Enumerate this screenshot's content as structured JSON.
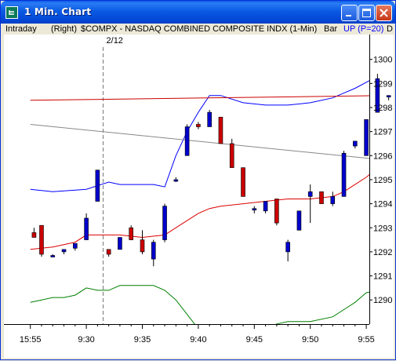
{
  "window": {
    "title": "1 Min. Chart",
    "icon": "chart-app-icon",
    "buttons": {
      "minimize": "minimize-icon",
      "maximize": "maximize-icon",
      "close": "close-icon"
    }
  },
  "header": {
    "period": "Intraday",
    "axis_side": "(Right)",
    "symbol": "$COMPX - NASDAQ COMBINED COMPOSITE INDX (1-Min)",
    "date": "2/12",
    "chart_style": "Bar",
    "indicator": "UP (P=20)",
    "truncated": "D"
  },
  "colors": {
    "up_bar": "#0000CC",
    "down_bar": "#CC0000",
    "upper_band": "#0000FF",
    "lower_band": "#DD0000",
    "red_avg": "#CC0000",
    "gray_avg": "#888888",
    "green_line": "#008000",
    "indicator_text": "#0000FF"
  },
  "chart_data": {
    "type": "candlestick",
    "x_tick_labels": [
      "15:55",
      "9:30",
      "9:35",
      "9:40",
      "9:45",
      "9:50",
      "9:55"
    ],
    "y_tick_labels": [
      "1290",
      "1291",
      "1292",
      "1293",
      "1294",
      "1295",
      "1296",
      "1297",
      "1298",
      "1299",
      "1300"
    ],
    "ylim": [
      1289.1,
      1301.0
    ],
    "candles": [
      {
        "x": -4.67,
        "o": 1292.8,
        "h": 1293.0,
        "l": 1292.6,
        "c": 1292.6
      },
      {
        "x": -4.0,
        "o": 1293.1,
        "h": 1293.1,
        "l": 1291.8,
        "c": 1291.9
      },
      {
        "x": -3.0,
        "o": 1291.85,
        "h": 1291.9,
        "l": 1291.8,
        "c": 1291.85
      },
      {
        "x": -2.0,
        "o": 1292.0,
        "h": 1292.1,
        "l": 1291.9,
        "c": 1292.1
      },
      {
        "x": -1.0,
        "o": 1292.15,
        "h": 1292.35,
        "l": 1292.05,
        "c": 1292.35
      },
      {
        "x": 0.0,
        "o": 1292.5,
        "h": 1293.6,
        "l": 1292.5,
        "c": 1293.4
      },
      {
        "x": 1.0,
        "o": 1294.1,
        "h": 1295.4,
        "l": 1294.1,
        "c": 1295.4
      },
      {
        "x": 2.0,
        "o": 1292.1,
        "h": 1292.1,
        "l": 1291.8,
        "c": 1291.9
      },
      {
        "x": 3.0,
        "o": 1292.1,
        "h": 1292.6,
        "l": 1292.1,
        "c": 1292.6
      },
      {
        "x": 4.0,
        "o": 1293.0,
        "h": 1293.1,
        "l": 1292.5,
        "c": 1292.5
      },
      {
        "x": 5.0,
        "o": 1292.5,
        "h": 1292.9,
        "l": 1291.9,
        "c": 1292.0
      },
      {
        "x": 6.0,
        "o": 1291.7,
        "h": 1292.5,
        "l": 1291.4,
        "c": 1292.4
      },
      {
        "x": 7.0,
        "o": 1292.5,
        "h": 1294.0,
        "l": 1292.4,
        "c": 1293.9
      },
      {
        "x": 8.0,
        "o": 1295.0,
        "h": 1295.1,
        "l": 1294.9,
        "c": 1295.0
      },
      {
        "x": 9.0,
        "o": 1296.0,
        "h": 1297.3,
        "l": 1296.0,
        "c": 1297.2
      },
      {
        "x": 10.0,
        "o": 1297.3,
        "h": 1297.4,
        "l": 1297.1,
        "c": 1297.2
      },
      {
        "x": 11.0,
        "o": 1297.2,
        "h": 1297.9,
        "l": 1297.2,
        "c": 1297.8
      },
      {
        "x": 12.0,
        "o": 1297.6,
        "h": 1297.6,
        "l": 1296.5,
        "c": 1296.5
      },
      {
        "x": 13.0,
        "o": 1296.5,
        "h": 1296.7,
        "l": 1295.5,
        "c": 1295.5
      },
      {
        "x": 14.0,
        "o": 1295.5,
        "h": 1295.5,
        "l": 1294.3,
        "c": 1294.3
      },
      {
        "x": 15.0,
        "o": 1293.8,
        "h": 1293.9,
        "l": 1293.6,
        "c": 1293.8
      },
      {
        "x": 16.0,
        "o": 1293.7,
        "h": 1294.1,
        "l": 1293.6,
        "c": 1294.1
      },
      {
        "x": 17.0,
        "o": 1294.2,
        "h": 1294.2,
        "l": 1293.1,
        "c": 1293.2
      },
      {
        "x": 18.0,
        "o": 1292.0,
        "h": 1292.5,
        "l": 1291.6,
        "c": 1292.4
      },
      {
        "x": 19.0,
        "o": 1292.9,
        "h": 1293.7,
        "l": 1292.9,
        "c": 1293.7
      },
      {
        "x": 20.0,
        "o": 1294.3,
        "h": 1294.8,
        "l": 1293.2,
        "c": 1294.5
      },
      {
        "x": 21.0,
        "o": 1294.5,
        "h": 1294.5,
        "l": 1294.0,
        "c": 1294.0
      },
      {
        "x": 22.0,
        "o": 1294.0,
        "h": 1294.5,
        "l": 1293.9,
        "c": 1294.3
      },
      {
        "x": 23.0,
        "o": 1294.3,
        "h": 1296.2,
        "l": 1294.3,
        "c": 1296.1
      },
      {
        "x": 24.0,
        "o": 1296.4,
        "h": 1296.6,
        "l": 1296.3,
        "c": 1296.6
      },
      {
        "x": 25.0,
        "o": 1296.0,
        "h": 1297.5,
        "l": 1296.0,
        "c": 1297.5
      },
      {
        "x": 26.0,
        "o": 1297.8,
        "h": 1299.4,
        "l": 1297.8,
        "c": 1299.2
      },
      {
        "x": 27.0,
        "o": 1298.5,
        "h": 1298.5,
        "l": 1298.3,
        "c": 1298.5
      }
    ],
    "series": [
      {
        "id": "upper",
        "color_key": "upper_band",
        "x": [
          -5,
          -3,
          0,
          2,
          3,
          4,
          6,
          7,
          8,
          9,
          10,
          11,
          12,
          14,
          16,
          18,
          20,
          22,
          23,
          24,
          26,
          27
        ],
        "y": [
          1294.6,
          1294.5,
          1294.6,
          1294.9,
          1294.8,
          1294.8,
          1294.8,
          1294.7,
          1296.0,
          1297.0,
          1297.8,
          1298.5,
          1298.5,
          1298.2,
          1298.1,
          1298.1,
          1298.2,
          1298.4,
          1298.6,
          1298.8,
          1299.3,
          1299.6
        ]
      },
      {
        "id": "red_avg",
        "color_key": "red_avg",
        "x": [
          -5,
          27
        ],
        "y": [
          1298.3,
          1298.5
        ]
      },
      {
        "id": "gray_avg",
        "color_key": "gray_avg",
        "x": [
          -5,
          27
        ],
        "y": [
          1297.3,
          1295.8
        ]
      },
      {
        "id": "lower",
        "color_key": "lower_band",
        "x": [
          -5,
          -3,
          -1,
          0,
          3,
          5,
          7,
          8,
          9,
          10,
          11,
          12,
          14,
          16,
          18,
          20,
          22,
          23,
          24,
          25,
          26,
          27
        ],
        "y": [
          1292.1,
          1292.2,
          1292.4,
          1292.7,
          1292.7,
          1292.6,
          1292.7,
          1293.0,
          1293.3,
          1293.6,
          1293.8,
          1293.9,
          1294.0,
          1294.1,
          1294.2,
          1294.2,
          1294.3,
          1294.5,
          1294.8,
          1295.1,
          1295.5,
          1295.8
        ]
      },
      {
        "id": "green",
        "color_key": "green_line",
        "x": [
          -5,
          -4,
          -3,
          -2,
          -1,
          0,
          1,
          2,
          3,
          4,
          5,
          6,
          7,
          8,
          9,
          10,
          12,
          14,
          15,
          16,
          17,
          18,
          20,
          22,
          23,
          24,
          25,
          26,
          27
        ],
        "y": [
          1289.9,
          1290.0,
          1290.1,
          1290.1,
          1290.2,
          1290.5,
          1290.4,
          1290.4,
          1290.6,
          1290.6,
          1290.6,
          1290.6,
          1290.4,
          1290.0,
          1289.4,
          1288.8,
          1288.6,
          1288.6,
          1288.7,
          1288.8,
          1289.0,
          1289.1,
          1289.1,
          1289.3,
          1289.6,
          1289.9,
          1290.3,
          1290.4,
          1290.3
        ]
      }
    ],
    "date_separator_x": 1.5
  }
}
